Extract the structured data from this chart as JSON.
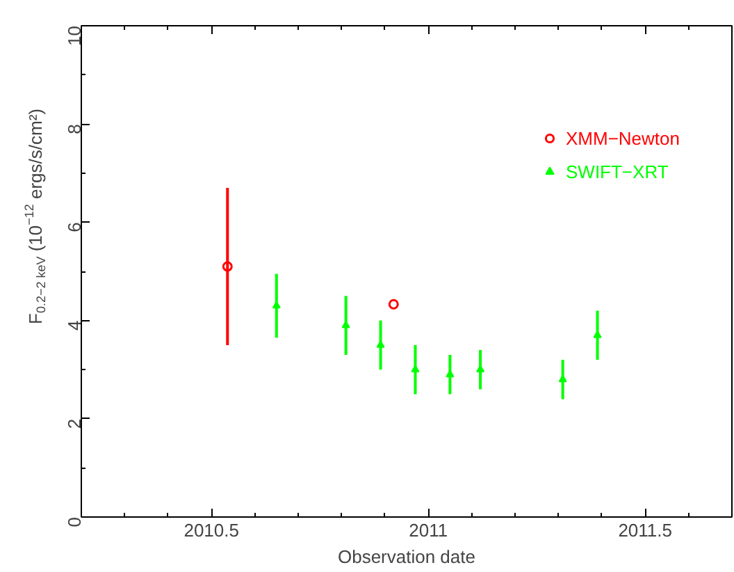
{
  "chart_data": {
    "type": "scatter",
    "xlabel": "Observation date",
    "ylabel": "F$_{0.2−2 keV}$ (10$^{−12}$ ergs/s/cm²)",
    "xlim": [
      2010.2,
      2011.7
    ],
    "xticks": [
      {
        "value": 2010.3,
        "label": null
      },
      {
        "value": 2010.4,
        "label": null
      },
      2010.5,
      {
        "value": 2010.6,
        "label": null
      },
      {
        "value": 2010.7,
        "label": null
      },
      {
        "value": 2010.8,
        "label": null
      },
      {
        "value": 2010.9,
        "label": null
      },
      2011,
      {
        "value": 2011.1,
        "label": null
      },
      {
        "value": 2011.2,
        "label": null
      },
      {
        "value": 2011.3,
        "label": null
      },
      {
        "value": 2011.4,
        "label": null
      },
      2011.5,
      {
        "value": 2011.6,
        "label": null
      }
    ],
    "ylim": [
      0,
      10
    ],
    "yticks": [
      0,
      {
        "value": 1,
        "label": null
      },
      2,
      {
        "value": 3,
        "label": null
      },
      4,
      {
        "value": 5,
        "label": null
      },
      6,
      {
        "value": 7,
        "label": null
      },
      8,
      {
        "value": 9,
        "label": null
      },
      10
    ],
    "grid": false,
    "legend": "top right",
    "series": [
      {
        "name": "XMM−Newton",
        "color": "#ff0000",
        "marker": "circle",
        "x": [
          2010.537,
          2010.92
        ],
        "values": [
          5.1,
          4.33
        ],
        "errors": [
          [
            3.5,
            6.7
          ],
          null
        ]
      },
      {
        "name": "SWIFT−XRT",
        "color": "#00ff00",
        "marker": "triangle",
        "x": [
          2010.65,
          2010.81,
          2010.89,
          2010.97,
          2011.05,
          2011.12,
          2011.31,
          2011.39
        ],
        "values": [
          4.3,
          3.9,
          3.5,
          3.0,
          2.9,
          3.0,
          2.8,
          3.7
        ],
        "errors": [
          [
            3.65,
            4.95
          ],
          [
            3.3,
            4.5
          ],
          [
            3.0,
            4.0
          ],
          [
            2.5,
            3.5
          ],
          [
            2.5,
            3.3
          ],
          [
            2.6,
            3.4
          ],
          [
            2.4,
            3.2
          ],
          [
            3.2,
            4.2
          ]
        ]
      }
    ]
  }
}
